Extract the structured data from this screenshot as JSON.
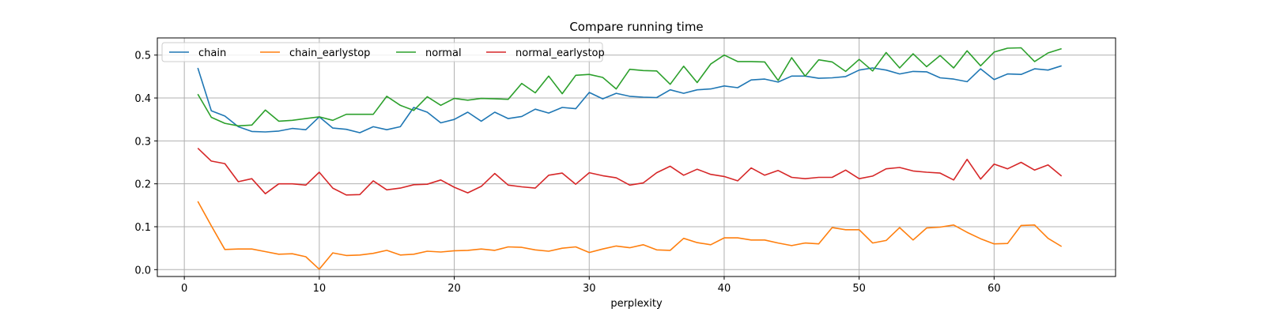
{
  "chart_data": {
    "type": "line",
    "title": "Compare running time",
    "xlabel": "perplexity",
    "ylabel": "",
    "xlim": [
      -2,
      69
    ],
    "ylim": [
      -0.016,
      0.54
    ],
    "xticks": [
      0,
      10,
      20,
      30,
      40,
      50,
      60
    ],
    "yticks": [
      0.0,
      0.1,
      0.2,
      0.3,
      0.4,
      0.5
    ],
    "xtick_labels": [
      "0",
      "10",
      "20",
      "30",
      "40",
      "50",
      "60"
    ],
    "ytick_labels": [
      "0.0",
      "0.1",
      "0.2",
      "0.3",
      "0.4",
      "0.5"
    ],
    "grid": true,
    "legend_position": "top-left",
    "x": [
      1,
      2,
      3,
      4,
      5,
      6,
      7,
      8,
      9,
      10,
      11,
      12,
      13,
      14,
      15,
      16,
      17,
      18,
      19,
      20,
      21,
      22,
      23,
      24,
      25,
      26,
      27,
      28,
      29,
      30,
      31,
      32,
      33,
      34,
      35,
      36,
      37,
      38,
      39,
      40,
      41,
      42,
      43,
      44,
      45,
      46,
      47,
      48,
      49,
      50,
      51,
      52,
      53,
      54,
      55,
      56,
      57,
      58,
      59,
      60,
      61,
      62,
      63,
      64,
      65
    ],
    "series": [
      {
        "name": "chain",
        "color": "#1f77b4",
        "values": [
          0.47,
          0.37,
          0.358,
          0.333,
          0.322,
          0.321,
          0.323,
          0.329,
          0.326,
          0.356,
          0.33,
          0.327,
          0.319,
          0.333,
          0.326,
          0.333,
          0.378,
          0.367,
          0.342,
          0.35,
          0.367,
          0.346,
          0.367,
          0.352,
          0.357,
          0.374,
          0.365,
          0.378,
          0.375,
          0.413,
          0.398,
          0.411,
          0.404,
          0.402,
          0.401,
          0.419,
          0.411,
          0.419,
          0.421,
          0.428,
          0.424,
          0.442,
          0.444,
          0.437,
          0.451,
          0.451,
          0.446,
          0.447,
          0.45,
          0.465,
          0.47,
          0.465,
          0.456,
          0.462,
          0.461,
          0.447,
          0.444,
          0.438,
          0.468,
          0.443,
          0.456,
          0.455,
          0.468,
          0.465,
          0.475
        ]
      },
      {
        "name": "chain_earlystop",
        "color": "#ff7f0e",
        "values": [
          0.159,
          0.102,
          0.047,
          0.048,
          0.048,
          0.042,
          0.036,
          0.037,
          0.03,
          0.001,
          0.039,
          0.033,
          0.034,
          0.038,
          0.045,
          0.034,
          0.036,
          0.043,
          0.041,
          0.044,
          0.045,
          0.048,
          0.045,
          0.053,
          0.052,
          0.046,
          0.043,
          0.05,
          0.053,
          0.04,
          0.048,
          0.055,
          0.051,
          0.058,
          0.046,
          0.045,
          0.073,
          0.063,
          0.058,
          0.074,
          0.074,
          0.069,
          0.069,
          0.062,
          0.056,
          0.062,
          0.06,
          0.098,
          0.093,
          0.093,
          0.062,
          0.068,
          0.098,
          0.069,
          0.097,
          0.099,
          0.104,
          0.087,
          0.072,
          0.06,
          0.061,
          0.103,
          0.104,
          0.073,
          0.054
        ]
      },
      {
        "name": "normal",
        "color": "#2ca02c",
        "values": [
          0.409,
          0.355,
          0.341,
          0.335,
          0.337,
          0.372,
          0.346,
          0.348,
          0.352,
          0.356,
          0.348,
          0.362,
          0.362,
          0.362,
          0.404,
          0.383,
          0.371,
          0.403,
          0.383,
          0.399,
          0.395,
          0.399,
          0.398,
          0.397,
          0.434,
          0.412,
          0.451,
          0.41,
          0.453,
          0.455,
          0.448,
          0.421,
          0.467,
          0.464,
          0.463,
          0.432,
          0.474,
          0.436,
          0.479,
          0.5,
          0.485,
          0.485,
          0.484,
          0.441,
          0.494,
          0.451,
          0.489,
          0.484,
          0.462,
          0.49,
          0.463,
          0.506,
          0.47,
          0.503,
          0.473,
          0.499,
          0.47,
          0.51,
          0.475,
          0.507,
          0.516,
          0.517,
          0.485,
          0.505,
          0.515
        ]
      },
      {
        "name": "normal_earlystop",
        "color": "#d62728",
        "values": [
          0.283,
          0.253,
          0.247,
          0.205,
          0.212,
          0.177,
          0.2,
          0.2,
          0.197,
          0.227,
          0.19,
          0.174,
          0.175,
          0.207,
          0.186,
          0.19,
          0.198,
          0.199,
          0.209,
          0.192,
          0.179,
          0.194,
          0.224,
          0.197,
          0.193,
          0.19,
          0.22,
          0.225,
          0.199,
          0.226,
          0.219,
          0.214,
          0.197,
          0.202,
          0.226,
          0.241,
          0.22,
          0.234,
          0.222,
          0.217,
          0.207,
          0.237,
          0.22,
          0.231,
          0.215,
          0.212,
          0.215,
          0.215,
          0.232,
          0.212,
          0.218,
          0.235,
          0.238,
          0.23,
          0.227,
          0.225,
          0.209,
          0.257,
          0.211,
          0.246,
          0.235,
          0.25,
          0.232,
          0.244,
          0.218
        ]
      }
    ]
  }
}
